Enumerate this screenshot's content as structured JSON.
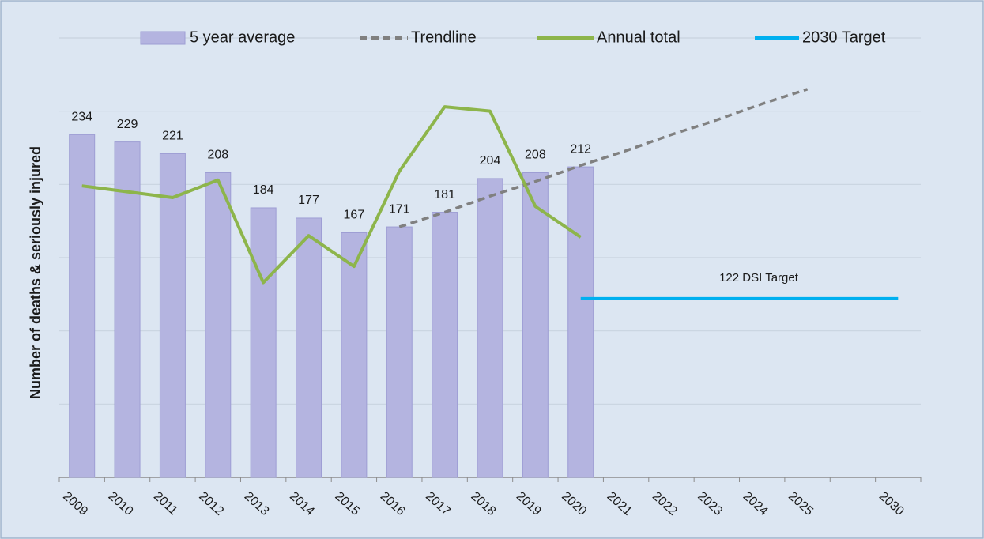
{
  "chart_data": {
    "type": "bar",
    "y_label": "Number of deaths & seriously injured",
    "categories": [
      "2009",
      "2010",
      "2011",
      "2012",
      "2013",
      "2014",
      "2015",
      "2016",
      "2017",
      "2018",
      "2019",
      "2020",
      "2021",
      "2022",
      "2023",
      "2024",
      "2025",
      null,
      "2030"
    ],
    "series": [
      {
        "name": "5 year average",
        "type": "bar",
        "color": "#b4b4e0",
        "values": [
          234,
          229,
          221,
          208,
          184,
          177,
          167,
          171,
          181,
          204,
          208,
          212,
          null,
          null,
          null,
          null,
          null,
          null,
          null
        ]
      },
      {
        "name": "Trendline",
        "type": "line",
        "dashed": true,
        "color": "#808080",
        "values": [
          null,
          null,
          null,
          null,
          null,
          null,
          null,
          171,
          181,
          192,
          202,
          213,
          223,
          234,
          244,
          255,
          265,
          null,
          null
        ]
      },
      {
        "name": "Annual total",
        "type": "line",
        "color": "#8db54b",
        "values": [
          199,
          195,
          191,
          203,
          133,
          165,
          144,
          209,
          253,
          250,
          185,
          164,
          null,
          null,
          null,
          null,
          null,
          null,
          null
        ]
      },
      {
        "name": "2030 Target",
        "type": "line",
        "color": "#00b0f0",
        "values": [
          null,
          null,
          null,
          null,
          null,
          null,
          null,
          null,
          null,
          null,
          null,
          122,
          122,
          122,
          122,
          122,
          122,
          122,
          122
        ]
      }
    ],
    "annotation": "122 DSI Target",
    "ylim": [
      0,
      300
    ],
    "yticks": [
      50,
      100,
      150,
      200,
      250,
      300
    ],
    "grid": true,
    "legend": "top"
  }
}
